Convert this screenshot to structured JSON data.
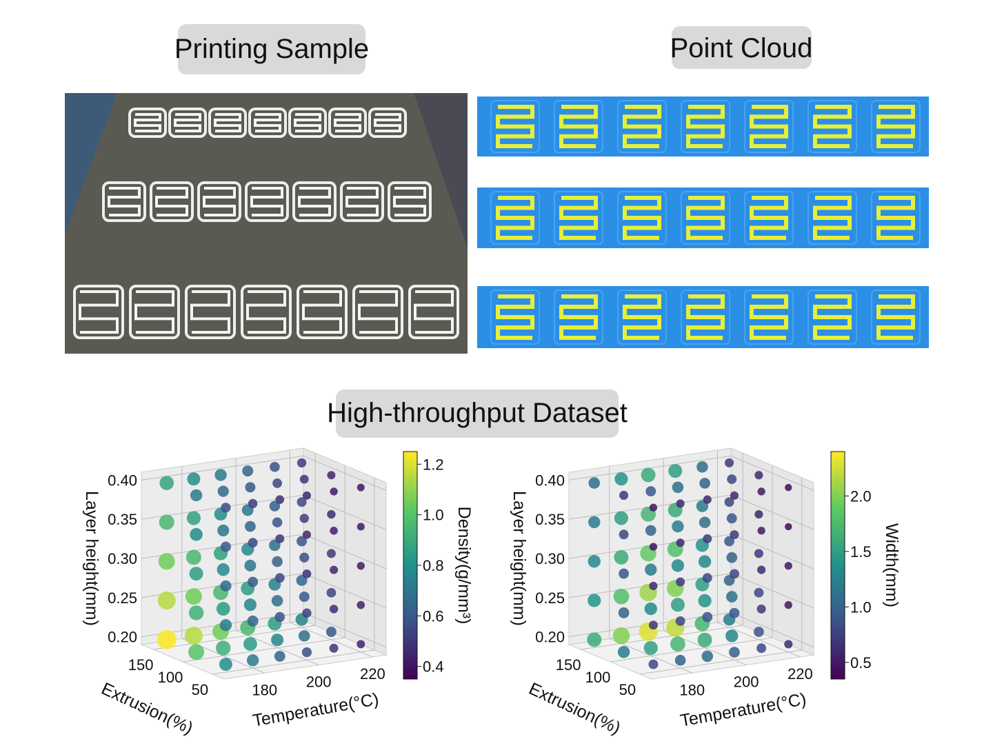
{
  "titles": {
    "printing_sample": "Printing Sample",
    "point_cloud": "Point Cloud",
    "dataset": "High-throughput Dataset"
  },
  "chart_data": [
    {
      "type": "scatter3d",
      "colormap": "viridis",
      "x_label": "Temperature(°C)",
      "y_label": "Extrusion(%)",
      "z_label": "Layer height(mm)",
      "colorbar_label": "Density(g/mm³)",
      "x": [
        170,
        180,
        190,
        200,
        210,
        220
      ],
      "y": [
        150,
        100,
        50
      ],
      "z": [
        0.2,
        0.25,
        0.3,
        0.35,
        0.4
      ],
      "values": [
        [
          [
            1.25,
            1.15,
            1.05,
            0.95,
            0.85,
            0.75
          ],
          [
            1.0,
            0.92,
            0.84,
            0.76,
            0.68,
            0.6
          ],
          [
            0.8,
            0.72,
            0.64,
            0.56,
            0.5,
            0.45
          ]
        ],
        [
          [
            1.15,
            1.05,
            0.95,
            0.85,
            0.75,
            0.65
          ],
          [
            0.92,
            0.84,
            0.76,
            0.68,
            0.6,
            0.54
          ],
          [
            0.72,
            0.65,
            0.58,
            0.52,
            0.47,
            0.43
          ]
        ],
        [
          [
            1.05,
            0.95,
            0.86,
            0.77,
            0.68,
            0.6
          ],
          [
            0.85,
            0.77,
            0.7,
            0.63,
            0.56,
            0.5
          ],
          [
            0.66,
            0.6,
            0.54,
            0.49,
            0.45,
            0.42
          ]
        ],
        [
          [
            0.95,
            0.86,
            0.78,
            0.7,
            0.62,
            0.55
          ],
          [
            0.78,
            0.71,
            0.64,
            0.58,
            0.52,
            0.47
          ],
          [
            0.6,
            0.55,
            0.5,
            0.46,
            0.43,
            0.41
          ]
        ],
        [
          [
            0.88,
            0.8,
            0.72,
            0.65,
            0.58,
            0.52
          ],
          [
            0.72,
            0.66,
            0.6,
            0.54,
            0.49,
            0.45
          ],
          [
            0.56,
            0.52,
            0.48,
            0.45,
            0.42,
            0.4
          ]
        ]
      ],
      "xlim": [
        165,
        225
      ],
      "xticks": [
        180,
        200,
        220
      ],
      "ylim": [
        30,
        170
      ],
      "yticks": [
        50,
        100,
        150
      ],
      "zlim": [
        0.19,
        0.41
      ],
      "zticks": [
        {
          "value": 0.2,
          "label": "0.20"
        },
        0.25,
        {
          "value": 0.3,
          "label": "0.30"
        },
        0.35,
        {
          "value": 0.4,
          "label": "0.40"
        }
      ],
      "clim": [
        0.35,
        1.25
      ],
      "cticks": [
        0.4,
        0.6,
        0.8,
        {
          "value": 1.0,
          "label": "1.0"
        },
        1.2
      ]
    },
    {
      "type": "scatter3d",
      "colormap": "viridis",
      "x_label": "Temperature(°C)",
      "y_label": "Extrusion(%)",
      "z_label": "Layer height(mm)",
      "colorbar_label": "Width(mm)",
      "x": [
        170,
        180,
        190,
        200,
        210,
        220
      ],
      "y": [
        150,
        100,
        50
      ],
      "z": [
        0.2,
        0.25,
        0.3,
        0.35,
        0.4
      ],
      "values": [
        [
          [
            1.6,
            2.0,
            2.3,
            2.2,
            1.7,
            1.2
          ],
          [
            1.2,
            1.5,
            1.7,
            1.6,
            1.3,
            0.9
          ],
          [
            0.8,
            1.0,
            1.1,
            1.0,
            0.8,
            0.6
          ]
        ],
        [
          [
            1.4,
            1.8,
            2.1,
            2.0,
            1.5,
            1.0
          ],
          [
            1.0,
            1.3,
            1.5,
            1.4,
            1.1,
            0.8
          ],
          [
            0.7,
            0.8,
            0.9,
            0.9,
            0.7,
            0.5
          ]
        ],
        [
          [
            1.3,
            1.6,
            1.9,
            1.8,
            1.4,
            0.9
          ],
          [
            0.9,
            1.2,
            1.3,
            1.3,
            1.0,
            0.7
          ],
          [
            0.6,
            0.7,
            0.8,
            0.8,
            0.6,
            0.5
          ]
        ],
        [
          [
            1.2,
            1.5,
            1.7,
            1.6,
            1.2,
            0.8
          ],
          [
            0.8,
            1.0,
            1.2,
            1.1,
            0.9,
            0.6
          ],
          [
            0.5,
            0.6,
            0.7,
            0.7,
            0.5,
            0.4
          ]
        ],
        [
          [
            1.1,
            1.4,
            1.6,
            1.5,
            1.1,
            0.7
          ],
          [
            0.7,
            0.9,
            1.1,
            1.0,
            0.8,
            0.6
          ],
          [
            0.5,
            0.6,
            0.6,
            0.6,
            0.5,
            0.4
          ]
        ]
      ],
      "xlim": [
        165,
        225
      ],
      "xticks": [
        180,
        200,
        220
      ],
      "ylim": [
        30,
        170
      ],
      "yticks": [
        50,
        100,
        150
      ],
      "zlim": [
        0.19,
        0.41
      ],
      "zticks": [
        {
          "value": 0.2,
          "label": "0.20"
        },
        0.25,
        {
          "value": 0.3,
          "label": "0.30"
        },
        0.35,
        {
          "value": 0.4,
          "label": "0.40"
        }
      ],
      "clim": [
        0.35,
        2.4
      ],
      "cticks": [
        0.5,
        {
          "value": 1.0,
          "label": "1.0"
        },
        1.5,
        {
          "value": 2.0,
          "label": "2.0"
        }
      ]
    }
  ]
}
